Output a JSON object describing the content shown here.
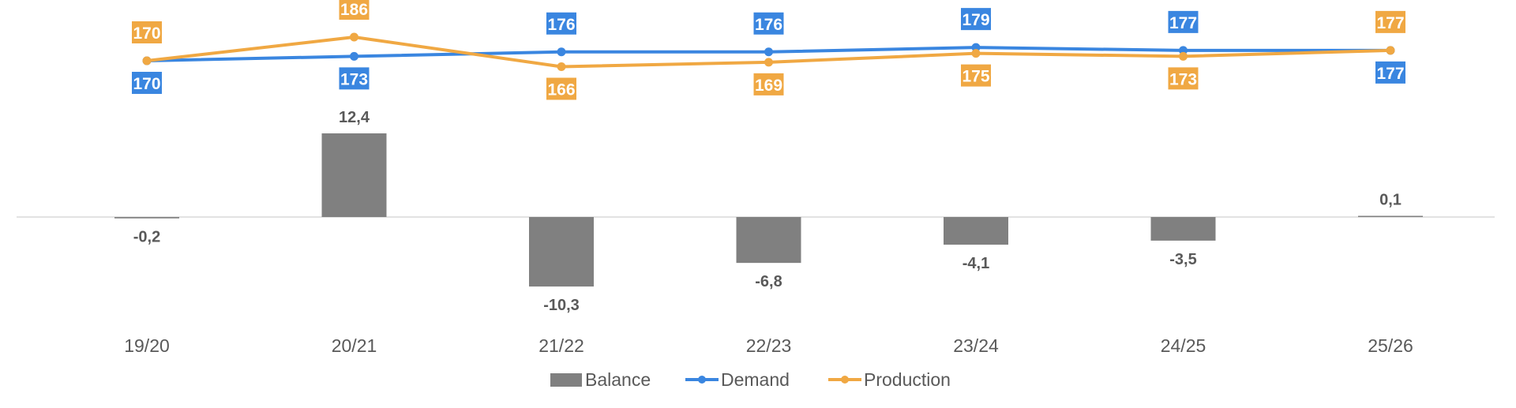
{
  "chart_data": {
    "type": "bar+line",
    "categories": [
      "19/20",
      "20/21",
      "21/22",
      "22/23",
      "23/24",
      "24/25",
      "25/26"
    ],
    "series": [
      {
        "name": "Balance",
        "type": "bar",
        "color": "#808080",
        "values": [
          -0.2,
          12.4,
          -10.3,
          -6.8,
          -4.1,
          -3.5,
          0.1
        ],
        "labels": [
          "-0,2",
          "12,4",
          "-10,3",
          "-6,8",
          "-4,1",
          "-3,5",
          "0,1"
        ]
      },
      {
        "name": "Demand",
        "type": "line",
        "color": "#3A86E0",
        "values": [
          170,
          173,
          176,
          176,
          179,
          177,
          177
        ]
      },
      {
        "name": "Production",
        "type": "line",
        "color": "#F0A843",
        "values": [
          170,
          186,
          166,
          169,
          175,
          173,
          177
        ]
      }
    ],
    "legend": "bottom",
    "grid": false
  }
}
